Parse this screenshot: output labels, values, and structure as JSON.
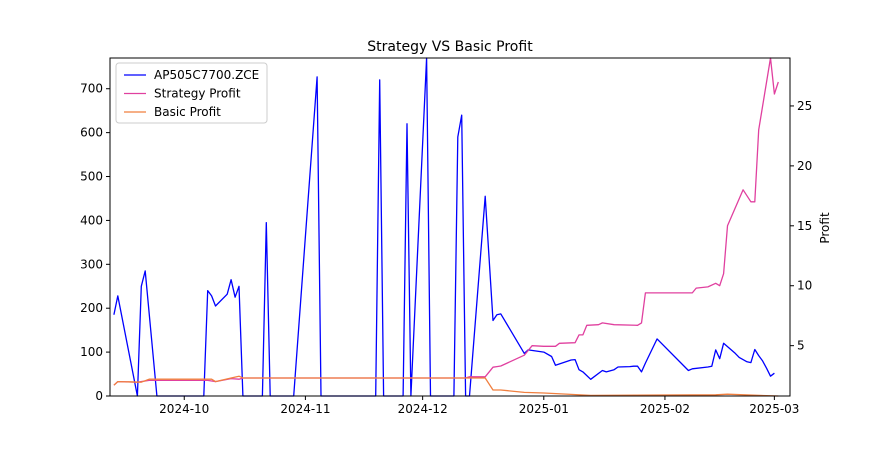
{
  "chart_data": {
    "type": "line",
    "title": "Strategy VS Basic Profit",
    "xlabel": "",
    "ylabel_left": "",
    "ylabel_right": "Profit",
    "legend_position": "top-left",
    "grid": false,
    "x_range": [
      "2024-09-12",
      "2025-03-05"
    ],
    "x_ticks": [
      "2024-10",
      "2024-11",
      "2024-12",
      "2025-01",
      "2025-02",
      "2025-03"
    ],
    "x_tick_dates": [
      "2024-10-01",
      "2024-11-01",
      "2024-12-01",
      "2025-01-01",
      "2025-02-01",
      "2025-03-01"
    ],
    "y_left_range": [
      0,
      770
    ],
    "y_left_ticks": [
      0,
      100,
      200,
      300,
      400,
      500,
      600,
      700
    ],
    "y_right_range": [
      0.8,
      29.0
    ],
    "y_right_ticks": [
      5,
      10,
      15,
      20,
      25
    ],
    "series": [
      {
        "name": "AP505C7700.ZCE",
        "axis": "left",
        "color": "#0000ff",
        "points": [
          [
            "2024-09-13",
            185
          ],
          [
            "2024-09-14",
            228
          ],
          [
            "2024-09-19",
            0
          ],
          [
            "2024-09-20",
            250
          ],
          [
            "2024-09-21",
            285
          ],
          [
            "2024-09-24",
            0
          ],
          [
            "2024-10-06",
            0
          ],
          [
            "2024-10-07",
            240
          ],
          [
            "2024-10-08",
            228
          ],
          [
            "2024-10-09",
            205
          ],
          [
            "2024-10-12",
            232
          ],
          [
            "2024-10-13",
            265
          ],
          [
            "2024-10-14",
            225
          ],
          [
            "2024-10-15",
            250
          ],
          [
            "2024-10-16",
            0
          ],
          [
            "2024-10-21",
            0
          ],
          [
            "2024-10-22",
            395
          ],
          [
            "2024-10-23",
            0
          ],
          [
            "2024-10-29",
            0
          ],
          [
            "2024-11-04",
            727
          ],
          [
            "2024-11-05",
            0
          ],
          [
            "2024-11-19",
            0
          ],
          [
            "2024-11-20",
            720
          ],
          [
            "2024-11-21",
            0
          ],
          [
            "2024-11-26",
            0
          ],
          [
            "2024-11-27",
            620
          ],
          [
            "2024-11-28",
            0
          ],
          [
            "2024-12-02",
            770
          ],
          [
            "2024-12-03",
            0
          ],
          [
            "2024-12-09",
            0
          ],
          [
            "2024-12-10",
            590
          ],
          [
            "2024-12-11",
            640
          ],
          [
            "2024-12-12",
            0
          ],
          [
            "2024-12-13",
            0
          ],
          [
            "2024-12-17",
            455
          ],
          [
            "2024-12-19",
            172
          ],
          [
            "2024-12-20",
            185
          ],
          [
            "2024-12-21",
            187
          ],
          [
            "2024-12-27",
            97
          ],
          [
            "2024-12-28",
            105
          ],
          [
            "2025-01-01",
            100
          ],
          [
            "2025-01-03",
            90
          ],
          [
            "2025-01-04",
            70
          ],
          [
            "2025-01-08",
            82
          ],
          [
            "2025-01-09",
            83
          ],
          [
            "2025-01-10",
            60
          ],
          [
            "2025-01-11",
            55
          ],
          [
            "2025-01-13",
            38
          ],
          [
            "2025-01-16",
            58
          ],
          [
            "2025-01-17",
            55
          ],
          [
            "2025-01-19",
            60
          ],
          [
            "2025-01-20",
            66
          ],
          [
            "2025-01-23",
            67
          ],
          [
            "2025-01-24",
            68
          ],
          [
            "2025-01-25",
            68
          ],
          [
            "2025-01-26",
            55
          ],
          [
            "2025-01-27",
            75
          ],
          [
            "2025-01-30",
            130
          ],
          [
            "2025-02-07",
            58
          ],
          [
            "2025-02-08",
            62
          ],
          [
            "2025-02-12",
            66
          ],
          [
            "2025-02-13",
            68
          ],
          [
            "2025-02-14",
            105
          ],
          [
            "2025-02-15",
            85
          ],
          [
            "2025-02-16",
            120
          ],
          [
            "2025-02-19",
            97
          ],
          [
            "2025-02-20",
            88
          ],
          [
            "2025-02-22",
            78
          ],
          [
            "2025-02-23",
            76
          ],
          [
            "2025-02-24",
            106
          ],
          [
            "2025-02-25",
            92
          ],
          [
            "2025-02-26",
            80
          ],
          [
            "2025-02-27",
            63
          ],
          [
            "2025-02-28",
            45
          ],
          [
            "2025-03-01",
            52
          ]
        ]
      },
      {
        "name": "Strategy Profit",
        "axis": "right",
        "color": "#e0409f",
        "points": [
          [
            "2024-09-13",
            1.7
          ],
          [
            "2024-09-14",
            2.0
          ],
          [
            "2024-09-19",
            1.95
          ],
          [
            "2024-09-22",
            2.1
          ],
          [
            "2024-09-24",
            2.1
          ],
          [
            "2024-10-07",
            2.1
          ],
          [
            "2024-10-09",
            2.0
          ],
          [
            "2024-10-13",
            2.25
          ],
          [
            "2024-10-15",
            2.2
          ],
          [
            "2024-10-16",
            2.3
          ],
          [
            "2024-12-12",
            2.3
          ],
          [
            "2024-12-13",
            2.4
          ],
          [
            "2024-12-17",
            2.4
          ],
          [
            "2024-12-19",
            3.2
          ],
          [
            "2024-12-20",
            3.25
          ],
          [
            "2024-12-21",
            3.3
          ],
          [
            "2024-12-27",
            4.2
          ],
          [
            "2024-12-29",
            5.0
          ],
          [
            "2025-01-01",
            4.95
          ],
          [
            "2025-01-04",
            4.95
          ],
          [
            "2025-01-05",
            5.2
          ],
          [
            "2025-01-09",
            5.25
          ],
          [
            "2025-01-10",
            5.9
          ],
          [
            "2025-01-11",
            5.9
          ],
          [
            "2025-01-12",
            6.7
          ],
          [
            "2025-01-15",
            6.75
          ],
          [
            "2025-01-16",
            6.9
          ],
          [
            "2025-01-19",
            6.75
          ],
          [
            "2025-01-25",
            6.7
          ],
          [
            "2025-01-26",
            6.9
          ],
          [
            "2025-01-27",
            9.4
          ],
          [
            "2025-02-08",
            9.4
          ],
          [
            "2025-02-09",
            9.8
          ],
          [
            "2025-02-12",
            9.9
          ],
          [
            "2025-02-14",
            10.2
          ],
          [
            "2025-02-15",
            10.0
          ],
          [
            "2025-02-16",
            11.0
          ],
          [
            "2025-02-17",
            15.0
          ],
          [
            "2025-02-21",
            18.0
          ],
          [
            "2025-02-22",
            17.5
          ],
          [
            "2025-02-23",
            17.0
          ],
          [
            "2025-02-24",
            17.0
          ],
          [
            "2025-02-25",
            23.0
          ],
          [
            "2025-02-28",
            29.0
          ],
          [
            "2025-03-01",
            26.0
          ],
          [
            "2025-03-02",
            27.0
          ]
        ]
      },
      {
        "name": "Basic Profit",
        "axis": "right",
        "color": "#f07f3f",
        "points": [
          [
            "2024-09-13",
            1.7
          ],
          [
            "2024-09-14",
            2.0
          ],
          [
            "2024-09-20",
            1.95
          ],
          [
            "2024-09-22",
            2.2
          ],
          [
            "2024-10-08",
            2.2
          ],
          [
            "2024-10-09",
            2.0
          ],
          [
            "2024-10-13",
            2.3
          ],
          [
            "2024-10-15",
            2.45
          ],
          [
            "2024-10-16",
            2.3
          ],
          [
            "2024-12-17",
            2.3
          ],
          [
            "2024-12-19",
            1.3
          ],
          [
            "2024-12-21",
            1.3
          ],
          [
            "2024-12-27",
            1.1
          ],
          [
            "2025-01-01",
            1.05
          ],
          [
            "2025-01-13",
            0.85
          ],
          [
            "2025-02-14",
            0.9
          ],
          [
            "2025-02-17",
            0.95
          ],
          [
            "2025-02-28",
            0.82
          ],
          [
            "2025-03-02",
            0.8
          ]
        ]
      }
    ]
  }
}
